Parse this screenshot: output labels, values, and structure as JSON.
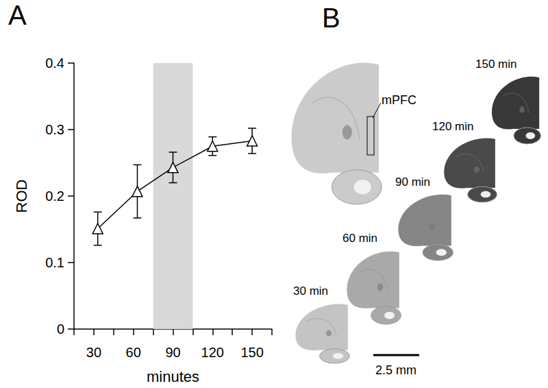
{
  "chart_data": {
    "type": "line",
    "panel_label": "A",
    "x": [
      33,
      63,
      90,
      120,
      150
    ],
    "values": [
      0.151,
      0.207,
      0.243,
      0.275,
      0.283
    ],
    "error": [
      0.025,
      0.04,
      0.023,
      0.014,
      0.019
    ],
    "color": "#000000",
    "marker": "triangle",
    "xlabel": "minutes",
    "ylabel": "ROD",
    "xlim": [
      15,
      165
    ],
    "xticks": [
      30,
      60,
      90,
      120,
      150
    ],
    "ylim": [
      0,
      0.4
    ],
    "yticks": [
      0,
      0.1,
      0.2,
      0.3,
      0.4
    ],
    "shaded_region": [
      75,
      105
    ],
    "shaded_color": "#d9d9d9",
    "grid": false
  },
  "panel_b": {
    "panel_label": "B",
    "region_label": "mPFC",
    "main_slice_color": "#cbcbcb",
    "slices": [
      {
        "label": "30 min",
        "color": "#c4c4c4"
      },
      {
        "label": "60 min",
        "color": "#a9a9a9"
      },
      {
        "label": "90 min",
        "color": "#858585"
      },
      {
        "label": "120 min",
        "color": "#4a4a4a"
      },
      {
        "label": "150 min",
        "color": "#383838"
      }
    ],
    "scale_bar": "2.5 mm"
  }
}
